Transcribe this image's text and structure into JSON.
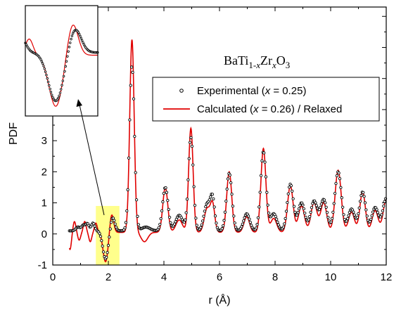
{
  "chart_data": {
    "type": "line",
    "xlabel": "r (Å)",
    "ylabel": "PDF",
    "xlim": [
      0,
      12
    ],
    "ylim": [
      -1,
      7.3
    ],
    "x_ticks": [
      "0",
      "2",
      "4",
      "6",
      "8",
      "10",
      "12"
    ],
    "y_ticks": [
      "-1",
      "0",
      "1",
      "2",
      "3",
      "4"
    ],
    "annotation": {
      "formula_parts": [
        "BaTi",
        "1-",
        "x",
        "Zr",
        "x",
        "O",
        "3"
      ]
    },
    "highlight_region": [
      1.55,
      2.4
    ],
    "inset": {
      "xlim": [
        1.5,
        2.45
      ]
    },
    "legend": {
      "placement": "top-right",
      "entries": [
        {
          "parts": [
            "Experimental (",
            "x",
            " = 0.25)"
          ],
          "marker": "open-circle",
          "color": "#000000"
        },
        {
          "parts": [
            "Calculated (",
            "x",
            " = 0.26) / Relaxed"
          ],
          "marker": "line",
          "color": "#e00000"
        }
      ]
    },
    "series": [
      {
        "name": "Experimental (x = 0.25)",
        "style": "open-circle",
        "color": "#000000",
        "peaks": [
          [
            0.9,
            0.12,
            0.07
          ],
          [
            1.1,
            0.18,
            0.07
          ],
          [
            1.25,
            0.22,
            0.06
          ],
          [
            1.45,
            0.25,
            0.06
          ],
          [
            1.9,
            -0.9,
            0.1
          ],
          [
            2.15,
            0.45,
            0.08
          ],
          [
            2.85,
            5.3,
            0.09
          ],
          [
            3.35,
            0.12,
            0.15
          ],
          [
            4.05,
            1.4,
            0.1
          ],
          [
            4.55,
            0.5,
            0.13
          ],
          [
            4.97,
            3.0,
            0.09
          ],
          [
            5.55,
            0.85,
            0.11
          ],
          [
            5.75,
            1.0,
            0.08
          ],
          [
            6.35,
            1.85,
            0.1
          ],
          [
            6.98,
            0.55,
            0.11
          ],
          [
            7.58,
            2.55,
            0.1
          ],
          [
            7.95,
            0.55,
            0.12
          ],
          [
            8.55,
            1.5,
            0.11
          ],
          [
            8.95,
            0.9,
            0.12
          ],
          [
            9.4,
            0.95,
            0.12
          ],
          [
            9.75,
            1.0,
            0.12
          ],
          [
            10.27,
            1.9,
            0.12
          ],
          [
            10.75,
            0.7,
            0.12
          ],
          [
            11.15,
            1.25,
            0.11
          ],
          [
            11.6,
            0.75,
            0.12
          ],
          [
            12.0,
            1.05,
            0.12
          ]
        ],
        "baseline": 0.1
      },
      {
        "name": "Calculated (x = 0.26) / Relaxed",
        "style": "line",
        "color": "#e00000",
        "peaks": [
          [
            0.62,
            -0.55,
            0.05
          ],
          [
            0.78,
            0.35,
            0.05
          ],
          [
            0.95,
            -0.25,
            0.05
          ],
          [
            1.15,
            0.35,
            0.05
          ],
          [
            1.35,
            -0.3,
            0.05
          ],
          [
            1.55,
            0.3,
            0.05
          ],
          [
            1.9,
            -0.95,
            0.09
          ],
          [
            2.12,
            0.6,
            0.07
          ],
          [
            2.85,
            6.2,
            0.08
          ],
          [
            3.3,
            -0.3,
            0.12
          ],
          [
            4.05,
            1.45,
            0.09
          ],
          [
            4.55,
            0.4,
            0.12
          ],
          [
            4.97,
            3.35,
            0.08
          ],
          [
            5.55,
            0.75,
            0.1
          ],
          [
            5.75,
            0.9,
            0.08
          ],
          [
            6.35,
            1.95,
            0.09
          ],
          [
            6.98,
            0.5,
            0.1
          ],
          [
            7.58,
            2.7,
            0.09
          ],
          [
            7.95,
            0.45,
            0.11
          ],
          [
            8.55,
            1.5,
            0.1
          ],
          [
            8.95,
            0.85,
            0.11
          ],
          [
            9.4,
            0.95,
            0.11
          ],
          [
            9.75,
            0.95,
            0.11
          ],
          [
            10.27,
            2.0,
            0.11
          ],
          [
            10.75,
            0.65,
            0.11
          ],
          [
            11.15,
            1.3,
            0.1
          ],
          [
            11.6,
            0.7,
            0.11
          ],
          [
            12.0,
            1.05,
            0.11
          ]
        ],
        "baseline": 0.05
      }
    ]
  }
}
